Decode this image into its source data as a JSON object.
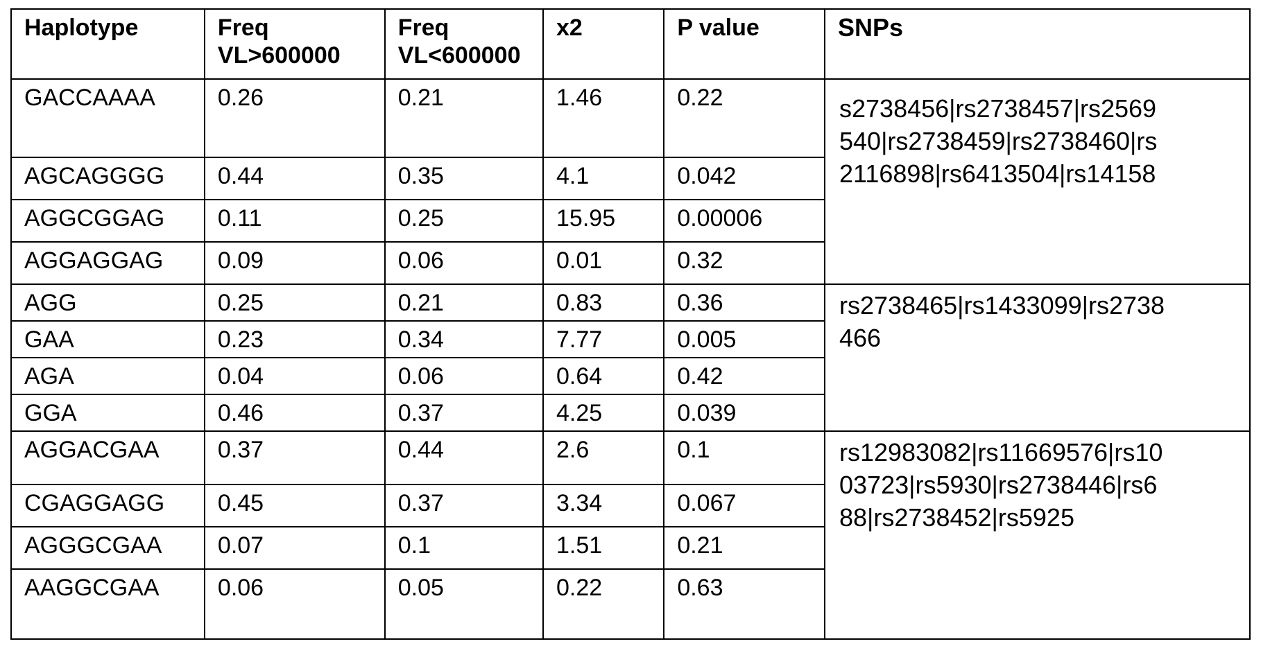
{
  "table": {
    "headers": {
      "haplotype": "Haplotype",
      "freq_high_l1": "Freq",
      "freq_high_l2": "VL>600000",
      "freq_low_l1": "Freq",
      "freq_low_l2": "VL<600000",
      "x2": "x2",
      "p_value": "P value",
      "snps": "SNPs"
    },
    "rows": [
      {
        "haplotype": "GACCAAAA",
        "freq_high": "0.26",
        "freq_low": "0.21",
        "x2": "1.46",
        "p": "0.22"
      },
      {
        "haplotype": "AGCAGGGG",
        "freq_high": "0.44",
        "freq_low": "0.35",
        "x2": "4.1",
        "p": "0.042"
      },
      {
        "haplotype": "AGGCGGAG",
        "freq_high": "0.11",
        "freq_low": "0.25",
        "x2": "15.95",
        "p": "0.00006"
      },
      {
        "haplotype": "AGGAGGAG",
        "freq_high": "0.09",
        "freq_low": "0.06",
        "x2": "0.01",
        "p": "0.32"
      },
      {
        "haplotype": "AGG",
        "freq_high": "0.25",
        "freq_low": "0.21",
        "x2": "0.83",
        "p": "0.36"
      },
      {
        "haplotype": "GAA",
        "freq_high": "0.23",
        "freq_low": "0.34",
        "x2": "7.77",
        "p": "0.005"
      },
      {
        "haplotype": "AGA",
        "freq_high": "0.04",
        "freq_low": "0.06",
        "x2": "0.64",
        "p": "0.42"
      },
      {
        "haplotype": "GGA",
        "freq_high": "0.46",
        "freq_low": "0.37",
        "x2": "4.25",
        "p": "0.039"
      },
      {
        "haplotype": "AGGACGAA",
        "freq_high": "0.37",
        "freq_low": "0.44",
        "x2": "2.6",
        "p": "0.1"
      },
      {
        "haplotype": "CGAGGAGG",
        "freq_high": "0.45",
        "freq_low": "0.37",
        "x2": "3.34",
        "p": "0.067"
      },
      {
        "haplotype": "AGGGCGAA",
        "freq_high": "0.07",
        "freq_low": "0.1",
        "x2": "1.51",
        "p": "0.21"
      },
      {
        "haplotype": "AAGGCGAA",
        "freq_high": "0.06",
        "freq_low": "0.05",
        "x2": "0.22",
        "p": "0.63"
      }
    ],
    "snp_groups": [
      {
        "lines": [
          "s2738456|rs2738457|rs2569",
          "540|rs2738459|rs2738460|rs",
          "2116898|rs6413504|rs14158"
        ]
      },
      {
        "lines": [
          "rs2738465|rs1433099|rs2738",
          "466"
        ]
      },
      {
        "lines": [
          "rs12983082|rs11669576|rs10",
          "03723|rs5930|rs2738446|rs6",
          "88|rs2738452|rs5925"
        ]
      }
    ]
  }
}
